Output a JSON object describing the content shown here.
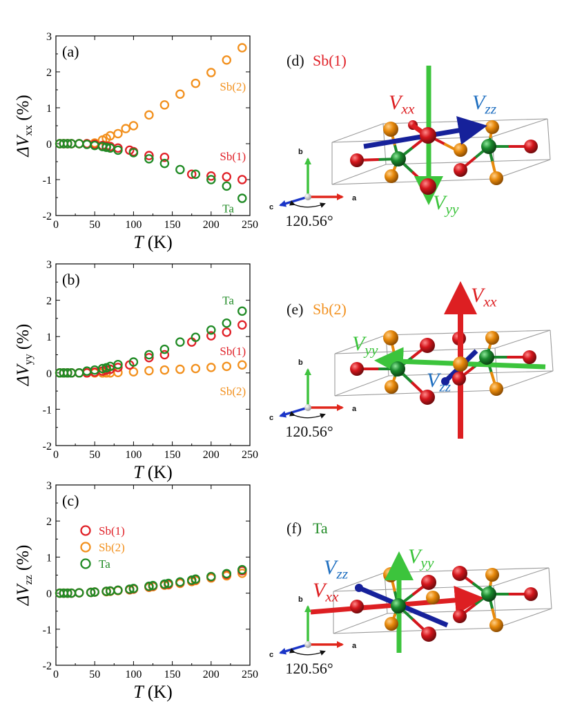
{
  "colors": {
    "sb1": "#e01f26",
    "sb2": "#f2901d",
    "ta": "#1f8a24",
    "sb1_atom": "#d4161c",
    "sb2_atom": "#e88a0c",
    "ta_atom": "#1b8a2e",
    "vxx_arrow": "#dd1f22",
    "vyy_arrow": "#3cc43c",
    "vzz_arrow": "#16219a",
    "vzz_label": "#1f6fc0",
    "axis_b": "#3fc23f",
    "axis_a": "#e0261b",
    "axis_c": "#1a35c8"
  },
  "chart_data": [
    {
      "id": "a",
      "type": "scatter",
      "panel_label": "(a)",
      "ylabel_main": "ΔV",
      "ylabel_sub": "xx",
      "ylabel_unit": "(%)",
      "xlabel_main": "T",
      "xlabel_unit": "(K)",
      "xlim": [
        0,
        250
      ],
      "ylim": [
        -2,
        3
      ],
      "xticks": [
        0,
        50,
        100,
        150,
        200,
        250
      ],
      "yticks": [
        -2,
        -1,
        0,
        1,
        2,
        3
      ],
      "marker": "open-circle",
      "series": [
        {
          "name": "Sb(1)",
          "color_key": "sb1",
          "x": [
            5,
            10,
            15,
            20,
            30,
            40,
            50,
            60,
            65,
            70,
            80,
            95,
            100,
            120,
            140,
            175,
            200,
            220,
            240
          ],
          "y": [
            0,
            0,
            0,
            0,
            0,
            0,
            -0.02,
            -0.05,
            -0.07,
            -0.08,
            -0.12,
            -0.18,
            -0.22,
            -0.33,
            -0.38,
            -0.85,
            -0.9,
            -0.92,
            -1.0
          ]
        },
        {
          "name": "Sb(2)",
          "color_key": "sb2",
          "x": [
            5,
            10,
            15,
            20,
            30,
            40,
            50,
            60,
            65,
            70,
            80,
            90,
            100,
            120,
            140,
            160,
            180,
            200,
            220,
            240
          ],
          "y": [
            0,
            0,
            0,
            0,
            0,
            0,
            0.02,
            0.1,
            0.15,
            0.22,
            0.28,
            0.42,
            0.5,
            0.8,
            1.08,
            1.38,
            1.68,
            1.98,
            2.33,
            2.67
          ]
        },
        {
          "name": "Ta",
          "color_key": "ta",
          "x": [
            5,
            10,
            15,
            20,
            30,
            40,
            50,
            60,
            65,
            70,
            80,
            100,
            120,
            140,
            160,
            180,
            200,
            220,
            240
          ],
          "y": [
            0,
            0,
            0,
            0,
            0,
            -0.02,
            -0.05,
            -0.08,
            -0.1,
            -0.12,
            -0.18,
            -0.25,
            -0.42,
            -0.55,
            -0.72,
            -0.85,
            -1.0,
            -1.18,
            -1.52
          ]
        }
      ],
      "annotations": [
        {
          "text": "Sb(2)",
          "color_key": "sb2",
          "x": 228,
          "y": 1.6
        },
        {
          "text": "Sb(1)",
          "color_key": "sb1",
          "x": 228,
          "y": -0.35
        },
        {
          "text": "Ta",
          "color_key": "ta",
          "x": 222,
          "y": -1.8
        }
      ]
    },
    {
      "id": "b",
      "type": "scatter",
      "panel_label": "(b)",
      "ylabel_main": "ΔV",
      "ylabel_sub": "yy",
      "ylabel_unit": "(%)",
      "xlabel_main": "T",
      "xlabel_unit": "(K)",
      "xlim": [
        0,
        250
      ],
      "ylim": [
        -2,
        3
      ],
      "xticks": [
        0,
        50,
        100,
        150,
        200,
        250
      ],
      "yticks": [
        -2,
        -1,
        0,
        1,
        2,
        3
      ],
      "marker": "open-circle",
      "series": [
        {
          "name": "Sb(1)",
          "color_key": "sb1",
          "x": [
            5,
            10,
            15,
            20,
            30,
            40,
            50,
            60,
            65,
            70,
            80,
            95,
            120,
            140,
            175,
            200,
            220,
            240
          ],
          "y": [
            0,
            0,
            0,
            0,
            0,
            0,
            0.02,
            0.05,
            0.08,
            0.1,
            0.15,
            0.22,
            0.42,
            0.5,
            0.85,
            1.02,
            1.12,
            1.32
          ]
        },
        {
          "name": "Sb(2)",
          "color_key": "sb2",
          "x": [
            5,
            10,
            15,
            20,
            30,
            40,
            50,
            60,
            65,
            70,
            80,
            100,
            120,
            140,
            160,
            180,
            200,
            220,
            240
          ],
          "y": [
            0,
            0,
            0,
            0,
            0,
            0,
            0,
            0,
            0,
            0,
            0.01,
            0.03,
            0.06,
            0.08,
            0.1,
            0.12,
            0.15,
            0.18,
            0.22
          ]
        },
        {
          "name": "Ta",
          "color_key": "ta",
          "x": [
            5,
            10,
            15,
            20,
            30,
            40,
            50,
            60,
            65,
            70,
            80,
            100,
            120,
            140,
            160,
            180,
            200,
            220,
            240
          ],
          "y": [
            0,
            0,
            0,
            0,
            0,
            0.05,
            0.08,
            0.12,
            0.14,
            0.18,
            0.23,
            0.3,
            0.5,
            0.65,
            0.85,
            0.98,
            1.18,
            1.37,
            1.7
          ]
        }
      ],
      "annotations": [
        {
          "text": "Ta",
          "color_key": "ta",
          "x": 222,
          "y": 2.0
        },
        {
          "text": "Sb(1)",
          "color_key": "sb1",
          "x": 228,
          "y": 0.6
        },
        {
          "text": "Sb(2)",
          "color_key": "sb2",
          "x": 228,
          "y": -0.5
        }
      ]
    },
    {
      "id": "c",
      "type": "scatter",
      "panel_label": "(c)",
      "ylabel_main": "ΔV",
      "ylabel_sub": "zz",
      "ylabel_unit": "(%)",
      "xlabel_main": "T",
      "xlabel_unit": "(K)",
      "xlim": [
        0,
        250
      ],
      "ylim": [
        -2,
        3
      ],
      "xticks": [
        0,
        50,
        100,
        150,
        200,
        250
      ],
      "yticks": [
        -2,
        -1,
        0,
        1,
        2,
        3
      ],
      "marker": "open-circle",
      "legend": {
        "position": "upper-left",
        "entries": [
          {
            "label": "Sb(1)",
            "color_key": "sb1"
          },
          {
            "label": "Sb(2)",
            "color_key": "sb2"
          },
          {
            "label": "Ta",
            "color_key": "ta"
          }
        ]
      },
      "series": [
        {
          "name": "Sb(1)",
          "color_key": "sb1",
          "x": [
            5,
            10,
            15,
            20,
            30,
            45,
            50,
            65,
            70,
            80,
            95,
            100,
            120,
            125,
            140,
            145,
            160,
            175,
            180,
            200,
            220,
            240
          ],
          "y": [
            0,
            0,
            0,
            0,
            0.01,
            0.02,
            0.03,
            0.05,
            0.06,
            0.08,
            0.1,
            0.12,
            0.18,
            0.2,
            0.24,
            0.25,
            0.3,
            0.35,
            0.38,
            0.45,
            0.52,
            0.62
          ]
        },
        {
          "name": "Sb(2)",
          "color_key": "sb2",
          "x": [
            5,
            10,
            15,
            20,
            30,
            45,
            50,
            65,
            70,
            80,
            95,
            100,
            120,
            125,
            140,
            145,
            160,
            175,
            180,
            200,
            220,
            240
          ],
          "y": [
            0,
            0,
            0,
            0,
            0.01,
            0.02,
            0.03,
            0.04,
            0.05,
            0.07,
            0.09,
            0.11,
            0.16,
            0.18,
            0.22,
            0.23,
            0.27,
            0.32,
            0.35,
            0.42,
            0.48,
            0.55
          ]
        },
        {
          "name": "Ta",
          "color_key": "ta",
          "x": [
            5,
            10,
            15,
            20,
            30,
            45,
            50,
            65,
            70,
            80,
            95,
            100,
            120,
            125,
            140,
            145,
            160,
            175,
            180,
            200,
            220,
            240
          ],
          "y": [
            0,
            0,
            0,
            0,
            0.01,
            0.02,
            0.03,
            0.05,
            0.06,
            0.08,
            0.11,
            0.13,
            0.19,
            0.21,
            0.25,
            0.27,
            0.31,
            0.36,
            0.39,
            0.46,
            0.54,
            0.65
          ]
        }
      ]
    }
  ],
  "crystal_panels": [
    {
      "id": "d",
      "label": "(d)",
      "site": "Sb(1)",
      "site_color_key": "sb1",
      "vxx_main": "V",
      "vxx_sub": "xx",
      "vyy_main": "V",
      "vyy_sub": "yy",
      "vzz_main": "V",
      "vzz_sub": "zz",
      "axis_a": "a",
      "axis_b": "b",
      "axis_c": "c",
      "angle": "120.56°"
    },
    {
      "id": "e",
      "label": "(e)",
      "site": "Sb(2)",
      "site_color_key": "sb2",
      "vxx_main": "V",
      "vxx_sub": "xx",
      "vyy_main": "V",
      "vyy_sub": "yy",
      "vzz_main": "V",
      "vzz_sub": "zz",
      "axis_a": "a",
      "axis_b": "b",
      "axis_c": "c",
      "angle": "120.56°"
    },
    {
      "id": "f",
      "label": "(f)",
      "site": "Ta",
      "site_color_key": "ta",
      "vxx_main": "V",
      "vxx_sub": "xx",
      "vyy_main": "V",
      "vyy_sub": "yy",
      "vzz_main": "V",
      "vzz_sub": "zz",
      "axis_a": "a",
      "axis_b": "b",
      "axis_c": "c",
      "angle": "120.56°"
    }
  ]
}
